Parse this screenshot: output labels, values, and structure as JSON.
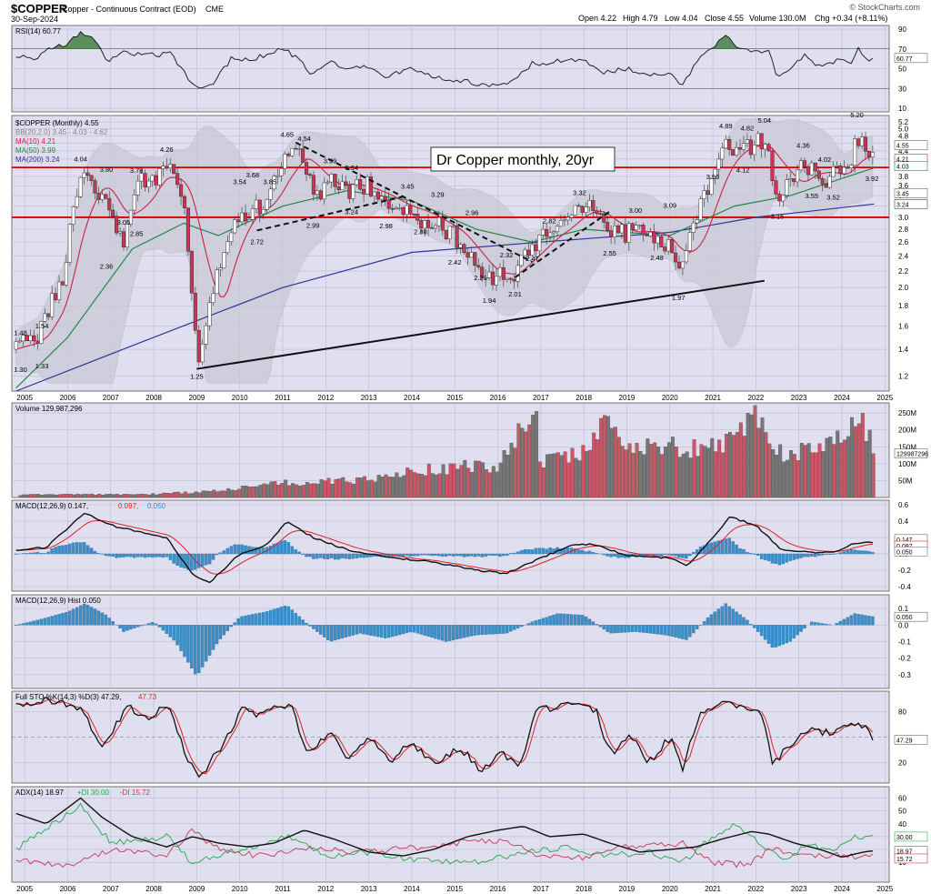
{
  "header": {
    "symbol": "$COPPER",
    "name": "Copper - Continuous Contract (EOD)",
    "exchange": "CME",
    "date": "30-Sep-2024",
    "watermark": "© StockCharts.com",
    "quote": {
      "open": "Open 4.22",
      "high": "High 4.79",
      "low": "Low 4.04",
      "close": "Close 4.55",
      "volume": "Volume 130.0M",
      "chg": "Chg +0.34 (+8.11%)"
    }
  },
  "colors": {
    "up": "#ffffff",
    "down": "#cc3355",
    "ma10": "#cc2244",
    "ma50": "#228844",
    "ma200": "#333399",
    "bb": "#999999",
    "volUp": "#777777",
    "volDown": "#cc5566",
    "macdHist": "#3a8fc8",
    "rsiFill": "#3a7a3a",
    "hline": "#d40000",
    "panelBg": "#dfdfef"
  },
  "x_axis": [
    "2005",
    "2006",
    "2007",
    "2008",
    "2009",
    "2010",
    "2011",
    "2012",
    "2013",
    "2014",
    "2015",
    "2016",
    "2017",
    "2018",
    "2019",
    "2020",
    "2021",
    "2022",
    "2023",
    "2024",
    "2025"
  ],
  "panels": {
    "rsi": {
      "legend": "RSI(14) 60.77",
      "ticks": [
        "90",
        "70",
        "50",
        "30",
        "10"
      ],
      "last": "60.77"
    },
    "price": {
      "legend": "$COPPER (Monthly) 4.55",
      "bb": "BB(20,2.0) 3.45 - 4.03 - 4.62",
      "ma10": "MA(10) 4.21",
      "ma50": "MA(50) 3.99",
      "ma200": "MA(200) 3.24",
      "title_box": "Dr Copper monthly, 20yr",
      "ticks": [
        "5.2",
        "5.0",
        "4.8",
        "4.6",
        "4.4",
        "4.2",
        "4.0",
        "3.8",
        "3.6",
        "3.4",
        "3.2",
        "3.0",
        "2.8",
        "2.6",
        "2.4",
        "2.2",
        "2.0",
        "1.8",
        "1.6",
        "1.4",
        "1.2"
      ],
      "right_tags": [
        "4.55",
        "4.21",
        "4.03",
        "3.45",
        "3.24"
      ],
      "hlines": [
        "4.0",
        "3.0"
      ]
    },
    "volume": {
      "legend": "Volume 129,987,296",
      "ticks": [
        "250M",
        "200M",
        "150M",
        "100M",
        "50M"
      ],
      "last": "129987296"
    },
    "macd": {
      "legend_a": "MACD(12,26,9) 0.147, ",
      "legend_b": "0.097, ",
      "legend_c": "0.050",
      "ticks": [
        "0.6",
        "0.4",
        "0.2",
        "0.0",
        "-0.2",
        "-0.4"
      ],
      "tags": [
        "0.147",
        "0.097",
        "0.050"
      ]
    },
    "hist": {
      "legend": "MACD(12,26,9) Hist 0.050",
      "ticks": [
        "0.1",
        "0.0",
        "-0.1",
        "-0.2",
        "-0.3"
      ],
      "last": "0.050"
    },
    "sto": {
      "legend_a": "Full STO %K(14,3) %D(3) 47.29, ",
      "legend_b": "47.73",
      "ticks": [
        "80",
        "20"
      ],
      "last": "47.29"
    },
    "adx": {
      "legend_a": "ADX(14) 18.97 ",
      "legend_b": "+DI 30.00 ",
      "legend_c": "-DI 15.72",
      "ticks": [
        "60",
        "50",
        "40",
        "30",
        "20",
        "10"
      ],
      "tags": [
        "30.00",
        "18.97",
        "15.72"
      ]
    }
  },
  "annotations": [
    {
      "t": "4.04",
      "x": 2006.3,
      "y": 4.04,
      "pos": "above"
    },
    {
      "t": "3.80",
      "x": 2006.9,
      "y": 3.8,
      "pos": "above"
    },
    {
      "t": "3.78",
      "x": 2007.6,
      "y": 3.78,
      "pos": "above"
    },
    {
      "t": "4.26",
      "x": 2008.3,
      "y": 4.26,
      "pos": "above"
    },
    {
      "t": "3.54",
      "x": 2010.0,
      "y": 3.54,
      "pos": "above"
    },
    {
      "t": "3.68",
      "x": 2010.3,
      "y": 3.68,
      "pos": "above"
    },
    {
      "t": "4.65",
      "x": 2011.1,
      "y": 4.65,
      "pos": "above"
    },
    {
      "t": "4.54",
      "x": 2011.5,
      "y": 4.54,
      "pos": "above"
    },
    {
      "t": "3.99",
      "x": 2012.1,
      "y": 3.99,
      "pos": "above"
    },
    {
      "t": "3.84",
      "x": 2012.6,
      "y": 3.84,
      "pos": "above"
    },
    {
      "t": "3.45",
      "x": 2013.9,
      "y": 3.45,
      "pos": "above"
    },
    {
      "t": "3.29",
      "x": 2014.6,
      "y": 3.29,
      "pos": "above"
    },
    {
      "t": "2.96",
      "x": 2015.4,
      "y": 2.96,
      "pos": "above"
    },
    {
      "t": "2.32",
      "x": 2016.2,
      "y": 2.32,
      "pos": "above"
    },
    {
      "t": "2.82",
      "x": 2017.2,
      "y": 2.82,
      "pos": "above"
    },
    {
      "t": "3.32",
      "x": 2017.9,
      "y": 3.32,
      "pos": "above"
    },
    {
      "t": "3.00",
      "x": 2019.2,
      "y": 3.0,
      "pos": "above"
    },
    {
      "t": "3.09",
      "x": 2020.0,
      "y": 3.09,
      "pos": "above"
    },
    {
      "t": "4.89",
      "x": 2021.3,
      "y": 4.89,
      "pos": "above"
    },
    {
      "t": "4.82",
      "x": 2021.8,
      "y": 4.82,
      "pos": "above"
    },
    {
      "t": "5.04",
      "x": 2022.2,
      "y": 5.04,
      "pos": "above"
    },
    {
      "t": "4.36",
      "x": 2023.1,
      "y": 4.36,
      "pos": "above"
    },
    {
      "t": "4.02",
      "x": 2023.6,
      "y": 4.02,
      "pos": "above"
    },
    {
      "t": "5.20",
      "x": 2024.35,
      "y": 5.2,
      "pos": "above"
    },
    {
      "t": "1.48",
      "x": 2004.9,
      "y": 1.48,
      "pos": "above"
    },
    {
      "t": "1.54",
      "x": 2005.4,
      "y": 1.54,
      "pos": "above"
    },
    {
      "t": "1.30",
      "x": 2004.9,
      "y": 1.3,
      "pos": "below"
    },
    {
      "t": "1.33",
      "x": 2005.4,
      "y": 1.33,
      "pos": "below"
    },
    {
      "t": "2.36",
      "x": 2006.9,
      "y": 2.36,
      "pos": "below"
    },
    {
      "t": "2.85",
      "x": 2007.6,
      "y": 2.85,
      "pos": "below"
    },
    {
      "t": "3.05",
      "x": 2007.3,
      "y": 3.05,
      "pos": "below"
    },
    {
      "t": "1.25",
      "x": 2009.0,
      "y": 1.25,
      "pos": "below"
    },
    {
      "t": "2.72",
      "x": 2010.4,
      "y": 2.72,
      "pos": "below"
    },
    {
      "t": "3.85",
      "x": 2010.7,
      "y": 3.85,
      "pos": "below"
    },
    {
      "t": "2.99",
      "x": 2011.7,
      "y": 2.99,
      "pos": "below"
    },
    {
      "t": "3.24",
      "x": 2012.6,
      "y": 3.24,
      "pos": "below"
    },
    {
      "t": "2.98",
      "x": 2013.4,
      "y": 2.98,
      "pos": "below"
    },
    {
      "t": "2.88",
      "x": 2014.2,
      "y": 2.88,
      "pos": "below"
    },
    {
      "t": "2.42",
      "x": 2015.0,
      "y": 2.42,
      "pos": "below"
    },
    {
      "t": "2.21",
      "x": 2015.6,
      "y": 2.21,
      "pos": "below"
    },
    {
      "t": "1.94",
      "x": 2015.8,
      "y": 1.94,
      "pos": "below"
    },
    {
      "t": "2.01",
      "x": 2016.4,
      "y": 2.01,
      "pos": "below"
    },
    {
      "t": "2.47",
      "x": 2016.8,
      "y": 2.47,
      "pos": "below"
    },
    {
      "t": "2.55",
      "x": 2018.6,
      "y": 2.55,
      "pos": "below"
    },
    {
      "t": "2.48",
      "x": 2019.7,
      "y": 2.48,
      "pos": "below"
    },
    {
      "t": "1.97",
      "x": 2020.2,
      "y": 1.97,
      "pos": "below"
    },
    {
      "t": "3.96",
      "x": 2021.0,
      "y": 3.96,
      "pos": "below"
    },
    {
      "t": "4.12",
      "x": 2021.7,
      "y": 4.12,
      "pos": "below"
    },
    {
      "t": "3.15",
      "x": 2022.5,
      "y": 3.15,
      "pos": "below"
    },
    {
      "t": "3.55",
      "x": 2023.3,
      "y": 3.55,
      "pos": "below"
    },
    {
      "t": "3.52",
      "x": 2023.8,
      "y": 3.52,
      "pos": "below"
    },
    {
      "t": "3.92",
      "x": 2024.7,
      "y": 3.92,
      "pos": "below"
    }
  ],
  "chart_data": {
    "type": "line",
    "title": "Dr Copper monthly, 20yr",
    "series": [
      {
        "name": "$COPPER (Monthly)",
        "x": [
          2004.8,
          2005.3,
          2005.9,
          2006.3,
          2006.8,
          2007.3,
          2007.6,
          2008.0,
          2008.3,
          2008.7,
          2009.0,
          2009.3,
          2009.8,
          2010.3,
          2010.7,
          2011.1,
          2011.5,
          2011.7,
          2012.1,
          2012.6,
          2013.0,
          2013.4,
          2013.9,
          2014.2,
          2014.6,
          2015.0,
          2015.4,
          2015.8,
          2016.2,
          2016.4,
          2016.8,
          2017.2,
          2017.5,
          2017.9,
          2018.3,
          2018.6,
          2019.2,
          2019.7,
          2020.0,
          2020.2,
          2020.6,
          2021.0,
          2021.3,
          2021.8,
          2022.2,
          2022.5,
          2022.8,
          2023.1,
          2023.6,
          2023.8,
          2024.1,
          2024.35,
          2024.7,
          2024.75
        ],
        "y": [
          1.4,
          1.5,
          2.1,
          3.9,
          3.4,
          2.6,
          3.7,
          3.6,
          4.1,
          3.2,
          1.3,
          1.8,
          2.9,
          3.2,
          3.3,
          4.5,
          4.3,
          3.3,
          3.8,
          3.5,
          3.6,
          3.2,
          3.2,
          3.0,
          2.9,
          2.7,
          2.3,
          2.1,
          2.2,
          2.2,
          2.6,
          2.7,
          2.9,
          3.2,
          3.1,
          2.7,
          2.8,
          2.7,
          2.5,
          2.1,
          2.9,
          3.9,
          4.5,
          4.5,
          4.7,
          3.3,
          3.6,
          4.1,
          3.7,
          3.9,
          3.9,
          4.7,
          4.2,
          4.55
        ]
      },
      {
        "name": "Volume",
        "note": "millions",
        "x": [
          2016.9,
          2021.9,
          2024.45,
          2024.75
        ],
        "y": [
          255,
          245,
          250,
          130
        ]
      }
    ],
    "xlim": [
      2004.7,
      2025.1
    ],
    "ylim": [
      1.1,
      5.4
    ],
    "ylog": true,
    "grid": true,
    "legend": "top-left"
  }
}
